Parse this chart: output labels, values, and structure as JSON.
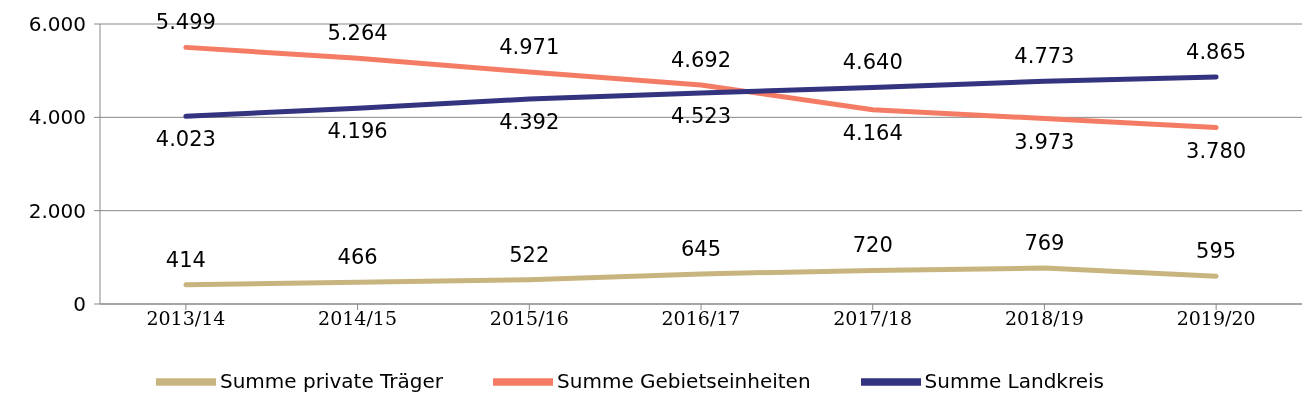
{
  "chart_data": {
    "type": "line",
    "categories": [
      "2013/14",
      "2014/15",
      "2015/16",
      "2016/17",
      "2017/18",
      "2018/19",
      "2019/20"
    ],
    "series": [
      {
        "name": "Summe private Träger",
        "color": "#c8b47e",
        "values": [
          414,
          466,
          522,
          645,
          720,
          769,
          595
        ],
        "value_labels": [
          "414",
          "466",
          "522",
          "645",
          "720",
          "769",
          "595"
        ]
      },
      {
        "name": "Summe Gebietseinheiten",
        "color": "#f47c64",
        "values": [
          5499,
          5264,
          4971,
          4692,
          4164,
          3973,
          3780
        ],
        "value_labels": [
          "5.499",
          "5.264",
          "4.971",
          "4.692",
          "4.164",
          "3.973",
          "3.780"
        ]
      },
      {
        "name": "Summe Landkreis",
        "color": "#33337f",
        "values": [
          4023,
          4196,
          4392,
          4523,
          4640,
          4773,
          4865
        ],
        "value_labels": [
          "4.023",
          "4.196",
          "4.392",
          "4.523",
          "4.640",
          "4.773",
          "4.865"
        ]
      }
    ],
    "ylim": [
      0,
      6000
    ],
    "yticks": [
      0,
      {
        "value": 2000,
        "label": "2.000"
      },
      {
        "value": 4000,
        "label": "4.000"
      },
      {
        "value": 6000,
        "label": "6.000"
      }
    ],
    "grid": "y",
    "legend": "bottom",
    "marker": "none",
    "line_style": "solid"
  }
}
